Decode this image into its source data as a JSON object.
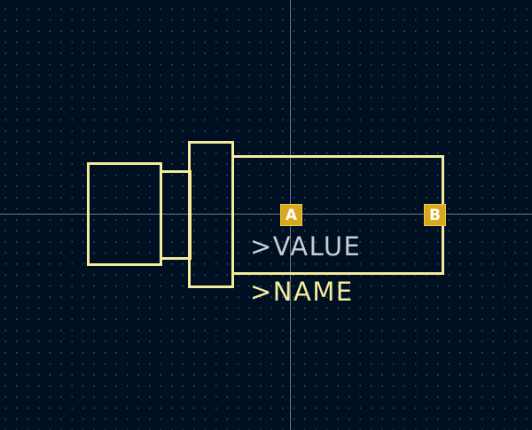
{
  "footprint": {
    "value_label": ">VALUE",
    "name_label": ">NAME",
    "pads": [
      {
        "name": "A"
      },
      {
        "name": "B"
      }
    ]
  },
  "colors": {
    "background": "#001023",
    "silkscreen": "#F4EB9E",
    "value_text": "#C9CCD2",
    "pad": "#D8A81E",
    "crosshair": "#C8CDD2"
  }
}
